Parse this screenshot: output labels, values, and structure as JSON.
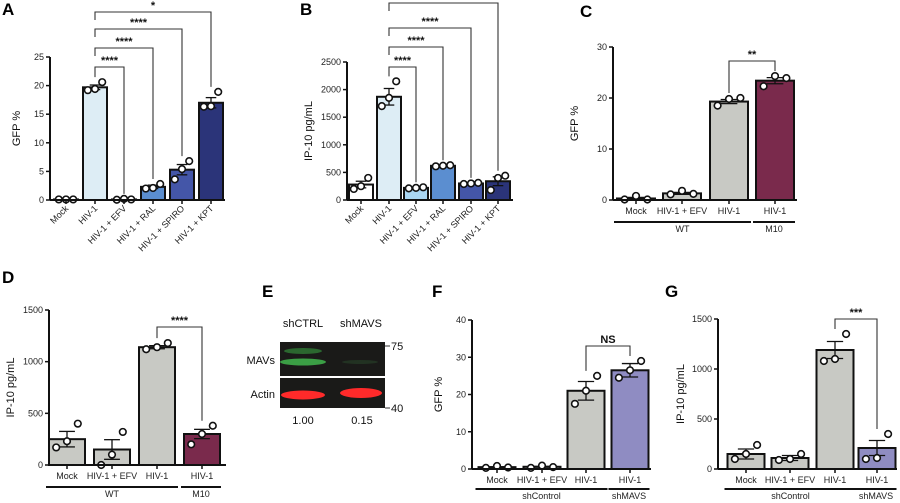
{
  "chart_data": [
    {
      "panel": "A",
      "type": "bar",
      "ylabel": "GFP %",
      "ylim": [
        0,
        25
      ],
      "yticks": [
        0,
        5,
        10,
        15,
        20,
        25
      ],
      "categories": [
        "Mock",
        "HIV-1",
        "HIV-1 + EFV",
        "HIV-1 + RAL",
        "HIV-1 + SPIRO",
        "HIV-1 + KPT"
      ],
      "values": [
        0.1,
        19.7,
        0.1,
        2.3,
        5.3,
        17.0
      ],
      "sem": [
        0.05,
        0.4,
        0.05,
        0.3,
        0.9,
        0.9
      ],
      "points": [
        [
          0.1,
          0.1,
          0.1
        ],
        [
          19.2,
          19.4,
          20.6
        ],
        [
          0.05,
          0.2,
          0.1
        ],
        [
          2.0,
          2.1,
          2.8
        ],
        [
          3.6,
          5.4,
          6.8
        ],
        [
          16.3,
          16.4,
          18.9
        ]
      ],
      "colors": [
        "#ffffff",
        "#ddedf5",
        "#a9d6f2",
        "#5b8ed0",
        "#4456a8",
        "#2b3479"
      ],
      "groups": [],
      "comparisons": [
        {
          "from": 1,
          "to": 2,
          "label": "****"
        },
        {
          "from": 1,
          "to": 3,
          "label": "****"
        },
        {
          "from": 1,
          "to": 4,
          "label": "****"
        },
        {
          "from": 1,
          "to": 5,
          "label": "*"
        }
      ]
    },
    {
      "panel": "B",
      "type": "bar",
      "ylabel": "IP-10 pg/mL",
      "ylim": [
        0,
        2500
      ],
      "yticks": [
        0,
        500,
        1000,
        1500,
        2000,
        2500
      ],
      "categories": [
        "Mock",
        "HIV-1",
        "HIV-1 + EFV",
        "HIV-1 + RAL",
        "HIV-1 + SPIRO",
        "HIV-1 + KPT"
      ],
      "values": [
        280,
        1870,
        220,
        620,
        300,
        340
      ],
      "sem": [
        60,
        150,
        10,
        10,
        10,
        80
      ],
      "points": [
        [
          200,
          250,
          400
        ],
        [
          1700,
          1850,
          2150
        ],
        [
          210,
          220,
          230
        ],
        [
          610,
          620,
          630
        ],
        [
          290,
          300,
          310
        ],
        [
          180,
          400,
          440
        ]
      ],
      "colors": [
        "#ffffff",
        "#ddedf5",
        "#a9d6f2",
        "#5b8ed0",
        "#4456a8",
        "#2b3479"
      ],
      "groups": [],
      "comparisons": [
        {
          "from": 1,
          "to": 2,
          "label": "****"
        },
        {
          "from": 1,
          "to": 3,
          "label": "****"
        },
        {
          "from": 1,
          "to": 4,
          "label": "****"
        },
        {
          "from": 1,
          "to": 5,
          "label": "****"
        }
      ]
    },
    {
      "panel": "C",
      "type": "bar",
      "ylabel": "GFP %",
      "ylim": [
        0,
        30
      ],
      "yticks": [
        0,
        10,
        20,
        30
      ],
      "categories": [
        "Mock",
        "HIV-1 + EFV",
        "HIV-1",
        "HIV-1"
      ],
      "values": [
        0.3,
        1.3,
        19.3,
        23.4
      ],
      "sem": [
        0.2,
        0.2,
        0.4,
        0.6
      ],
      "points": [
        [
          0.1,
          0.8,
          0.1
        ],
        [
          1.1,
          1.8,
          1.2
        ],
        [
          18.5,
          19.8,
          20.0
        ],
        [
          22.3,
          24.3,
          23.9
        ]
      ],
      "colors": [
        "#c8c9c4",
        "#c8c9c4",
        "#c8c9c4",
        "#7a2a4c"
      ],
      "groups": [
        {
          "label": "WT",
          "from": 0,
          "to": 2
        },
        {
          "label": "M10",
          "from": 3,
          "to": 3
        }
      ],
      "comparisons": [
        {
          "from": 2,
          "to": 3,
          "label": "**"
        }
      ]
    },
    {
      "panel": "D",
      "type": "bar",
      "ylabel": "IP-10 pg/mL",
      "ylim": [
        0,
        1500
      ],
      "yticks": [
        0,
        500,
        1000,
        1500
      ],
      "categories": [
        "Mock",
        "HIV-1 + EFV",
        "HIV-1",
        "HIV-1"
      ],
      "values": [
        250,
        150,
        1140,
        300
      ],
      "sem": [
        75,
        95,
        15,
        45
      ],
      "points": [
        [
          170,
          230,
          400
        ],
        [
          0,
          100,
          320
        ],
        [
          1120,
          1140,
          1180
        ],
        [
          200,
          300,
          380
        ]
      ],
      "colors": [
        "#c8c9c4",
        "#c8c9c4",
        "#c8c9c4",
        "#7a2a4c"
      ],
      "groups": [
        {
          "label": "WT",
          "from": 0,
          "to": 2
        },
        {
          "label": "M10",
          "from": 3,
          "to": 3
        }
      ],
      "comparisons": [
        {
          "from": 2,
          "to": 3,
          "label": "****"
        }
      ]
    },
    {
      "panel": "F",
      "type": "bar",
      "ylabel": "GFP %",
      "ylim": [
        0,
        40
      ],
      "yticks": [
        0,
        10,
        20,
        30,
        40
      ],
      "categories": [
        "Mock",
        "HIV-1 + EFV",
        "HIV-1",
        "HIV-1"
      ],
      "values": [
        0.5,
        0.6,
        21.0,
        26.5
      ],
      "sem": [
        0.1,
        0.1,
        2.5,
        1.8
      ],
      "points": [
        [
          0.3,
          0.8,
          0.4
        ],
        [
          0.3,
          0.9,
          0.5
        ],
        [
          17.5,
          21,
          25
        ],
        [
          24.5,
          26.5,
          29
        ]
      ],
      "colors": [
        "#c8c9c4",
        "#c8c9c4",
        "#c8c9c4",
        "#8f8cc2"
      ],
      "groups": [
        {
          "label": "shControl",
          "from": 0,
          "to": 2
        },
        {
          "label": "shMAVS",
          "from": 3,
          "to": 3
        }
      ],
      "comparisons": [
        {
          "from": 2,
          "to": 3,
          "label": "NS"
        }
      ]
    },
    {
      "panel": "G",
      "type": "bar",
      "ylabel": "IP-10 pg/mL",
      "ylim": [
        0,
        1500
      ],
      "yticks": [
        0,
        500,
        1000,
        1500
      ],
      "categories": [
        "Mock",
        "HIV-1 + EFV",
        "HIV-1",
        "HIV-1"
      ],
      "values": [
        150,
        110,
        1190,
        210
      ],
      "sem": [
        50,
        25,
        85,
        75
      ],
      "points": [
        [
          100,
          150,
          240
        ],
        [
          90,
          100,
          150
        ],
        [
          1080,
          1100,
          1350
        ],
        [
          100,
          110,
          350
        ]
      ],
      "colors": [
        "#c8c9c4",
        "#c8c9c4",
        "#c8c9c4",
        "#8f8cc2"
      ],
      "groups": [
        {
          "label": "shControl",
          "from": 0,
          "to": 2
        },
        {
          "label": "shMAVS",
          "from": 3,
          "to": 3
        }
      ],
      "comparisons": [
        {
          "from": 2,
          "to": 3,
          "label": "***"
        }
      ]
    }
  ],
  "blot": {
    "panel": "E",
    "lanes": [
      "shCTRL",
      "shMAVS"
    ],
    "rows": [
      "MAVs",
      "Actin"
    ],
    "markers": [
      "75",
      "40"
    ],
    "quantification": [
      "1.00",
      "0.15"
    ],
    "colors": {
      "mavs_band": "#3fae4a",
      "actin_band": "#ff2a2a",
      "background": "#1a1a18"
    }
  }
}
